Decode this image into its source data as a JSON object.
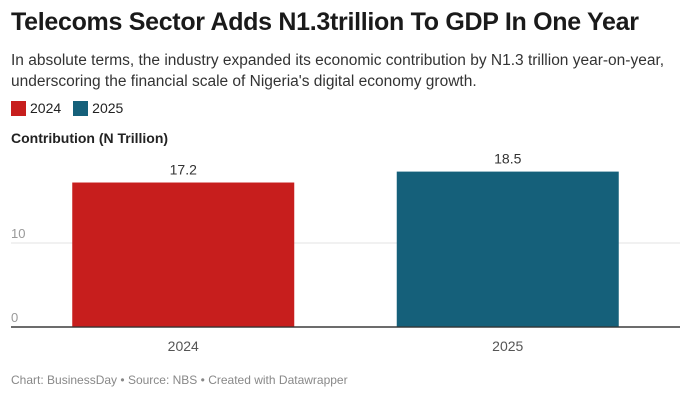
{
  "title": "Telecoms Sector Adds N1.3trillion To GDP In One Year",
  "subtitle": "In absolute terms, the industry expanded its economic contribution by N1.3 trillion year-on-year, underscoring the financial scale of Nigeria's digital economy growth.",
  "legend": [
    {
      "label": "2024",
      "color": "#c71e1d"
    },
    {
      "label": "2025",
      "color": "#15607a"
    }
  ],
  "footer": {
    "chart": "Chart: BusinessDay",
    "source": "Source: NBS",
    "created": "Created with Datawrapper",
    "separator": "•"
  },
  "chart_data": {
    "type": "bar",
    "title": "Telecoms Sector Adds N1.3trillion To GDP In One Year",
    "ylabel": "Contribution (N Trillion)",
    "xlabel": "",
    "categories": [
      "2024",
      "2025"
    ],
    "values": [
      17.2,
      18.5
    ],
    "value_labels": [
      "17.2",
      "18.5"
    ],
    "colors": [
      "#c71e1d",
      "#15607a"
    ],
    "yticks": [
      0,
      10
    ],
    "ylim": [
      0,
      20
    ],
    "grid": true,
    "legend_position": "top-left"
  }
}
